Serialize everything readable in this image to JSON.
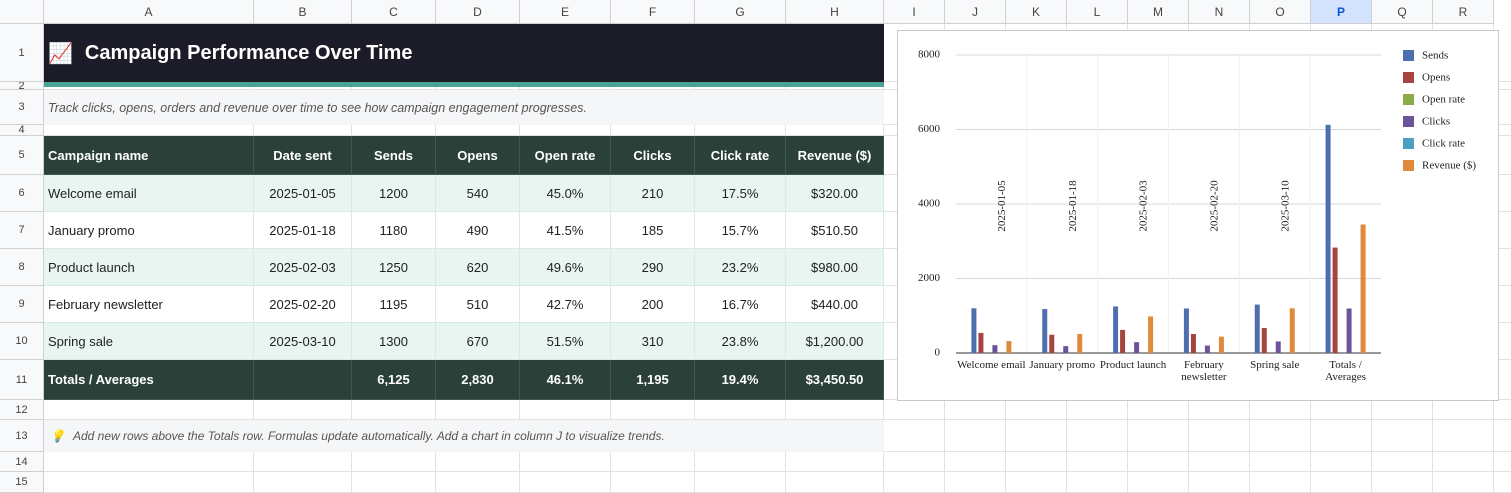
{
  "column_headers": [
    "A",
    "B",
    "C",
    "D",
    "E",
    "F",
    "G",
    "H",
    "I",
    "J",
    "K",
    "L",
    "M",
    "N",
    "O",
    "P",
    "Q",
    "R"
  ],
  "row_numbers": [
    "1",
    "2",
    "3",
    "4",
    "5",
    "6",
    "7",
    "8",
    "9",
    "10",
    "11",
    "12",
    "13",
    "14",
    "15"
  ],
  "title": {
    "icon": "📈",
    "text": "Campaign Performance Over Time"
  },
  "subtitle": "Track clicks, opens, orders and revenue over time to see how campaign engagement progresses.",
  "table": {
    "header": [
      "Campaign name",
      "Date sent",
      "Sends",
      "Opens",
      "Open rate",
      "Clicks",
      "Click rate",
      "Revenue ($)"
    ],
    "rows": [
      [
        "Welcome email",
        "2025-01-05",
        "1200",
        "540",
        "45.0%",
        "210",
        "17.5%",
        "$320.00"
      ],
      [
        "January promo",
        "2025-01-18",
        "1180",
        "490",
        "41.5%",
        "185",
        "15.7%",
        "$510.50"
      ],
      [
        "Product launch",
        "2025-02-03",
        "1250",
        "620",
        "49.6%",
        "290",
        "23.2%",
        "$980.00"
      ],
      [
        "February newsletter",
        "2025-02-20",
        "1195",
        "510",
        "42.7%",
        "200",
        "16.7%",
        "$440.00"
      ],
      [
        "Spring sale",
        "2025-03-10",
        "1300",
        "670",
        "51.5%",
        "310",
        "23.8%",
        "$1,200.00"
      ]
    ],
    "totals": {
      "label": "Totals / Averages",
      "values": [
        "6,125",
        "2,830",
        "46.1%",
        "1,195",
        "19.4%",
        "$3,450.50"
      ]
    }
  },
  "note": {
    "icon": "💡",
    "text": "Add new rows above the Totals row. Formulas update automatically. Add a chart in column J to visualize trends."
  },
  "chart_data": {
    "type": "bar",
    "categories": [
      "Welcome email",
      "January promo",
      "Product launch",
      "February newsletter",
      "Spring sale",
      "Totals / Averages"
    ],
    "annotations": [
      "2025-01-05",
      "2025-01-18",
      "2025-02-03",
      "2025-02-20",
      "2025-03-10"
    ],
    "series": [
      {
        "name": "Sends",
        "color": "#4e6fae",
        "values": [
          1200,
          1180,
          1250,
          1195,
          1300,
          6125
        ]
      },
      {
        "name": "Opens",
        "color": "#a6453f",
        "values": [
          540,
          490,
          620,
          510,
          670,
          2830
        ]
      },
      {
        "name": "Open rate",
        "color": "#8aab45",
        "values": [
          0.45,
          0.415,
          0.496,
          0.427,
          0.515,
          0.461
        ]
      },
      {
        "name": "Clicks",
        "color": "#6b549a",
        "values": [
          210,
          185,
          290,
          200,
          310,
          1195
        ]
      },
      {
        "name": "Click rate",
        "color": "#4aa0c0",
        "values": [
          0.175,
          0.157,
          0.232,
          0.167,
          0.238,
          0.194
        ]
      },
      {
        "name": "Revenue ($)",
        "color": "#e08a3c",
        "values": [
          320,
          510.5,
          980,
          440,
          1200,
          3450.5
        ]
      }
    ],
    "ylim": [
      0,
      8000
    ],
    "yticks": [
      0,
      2000,
      4000,
      6000,
      8000
    ],
    "grid": true,
    "legend": "right"
  }
}
